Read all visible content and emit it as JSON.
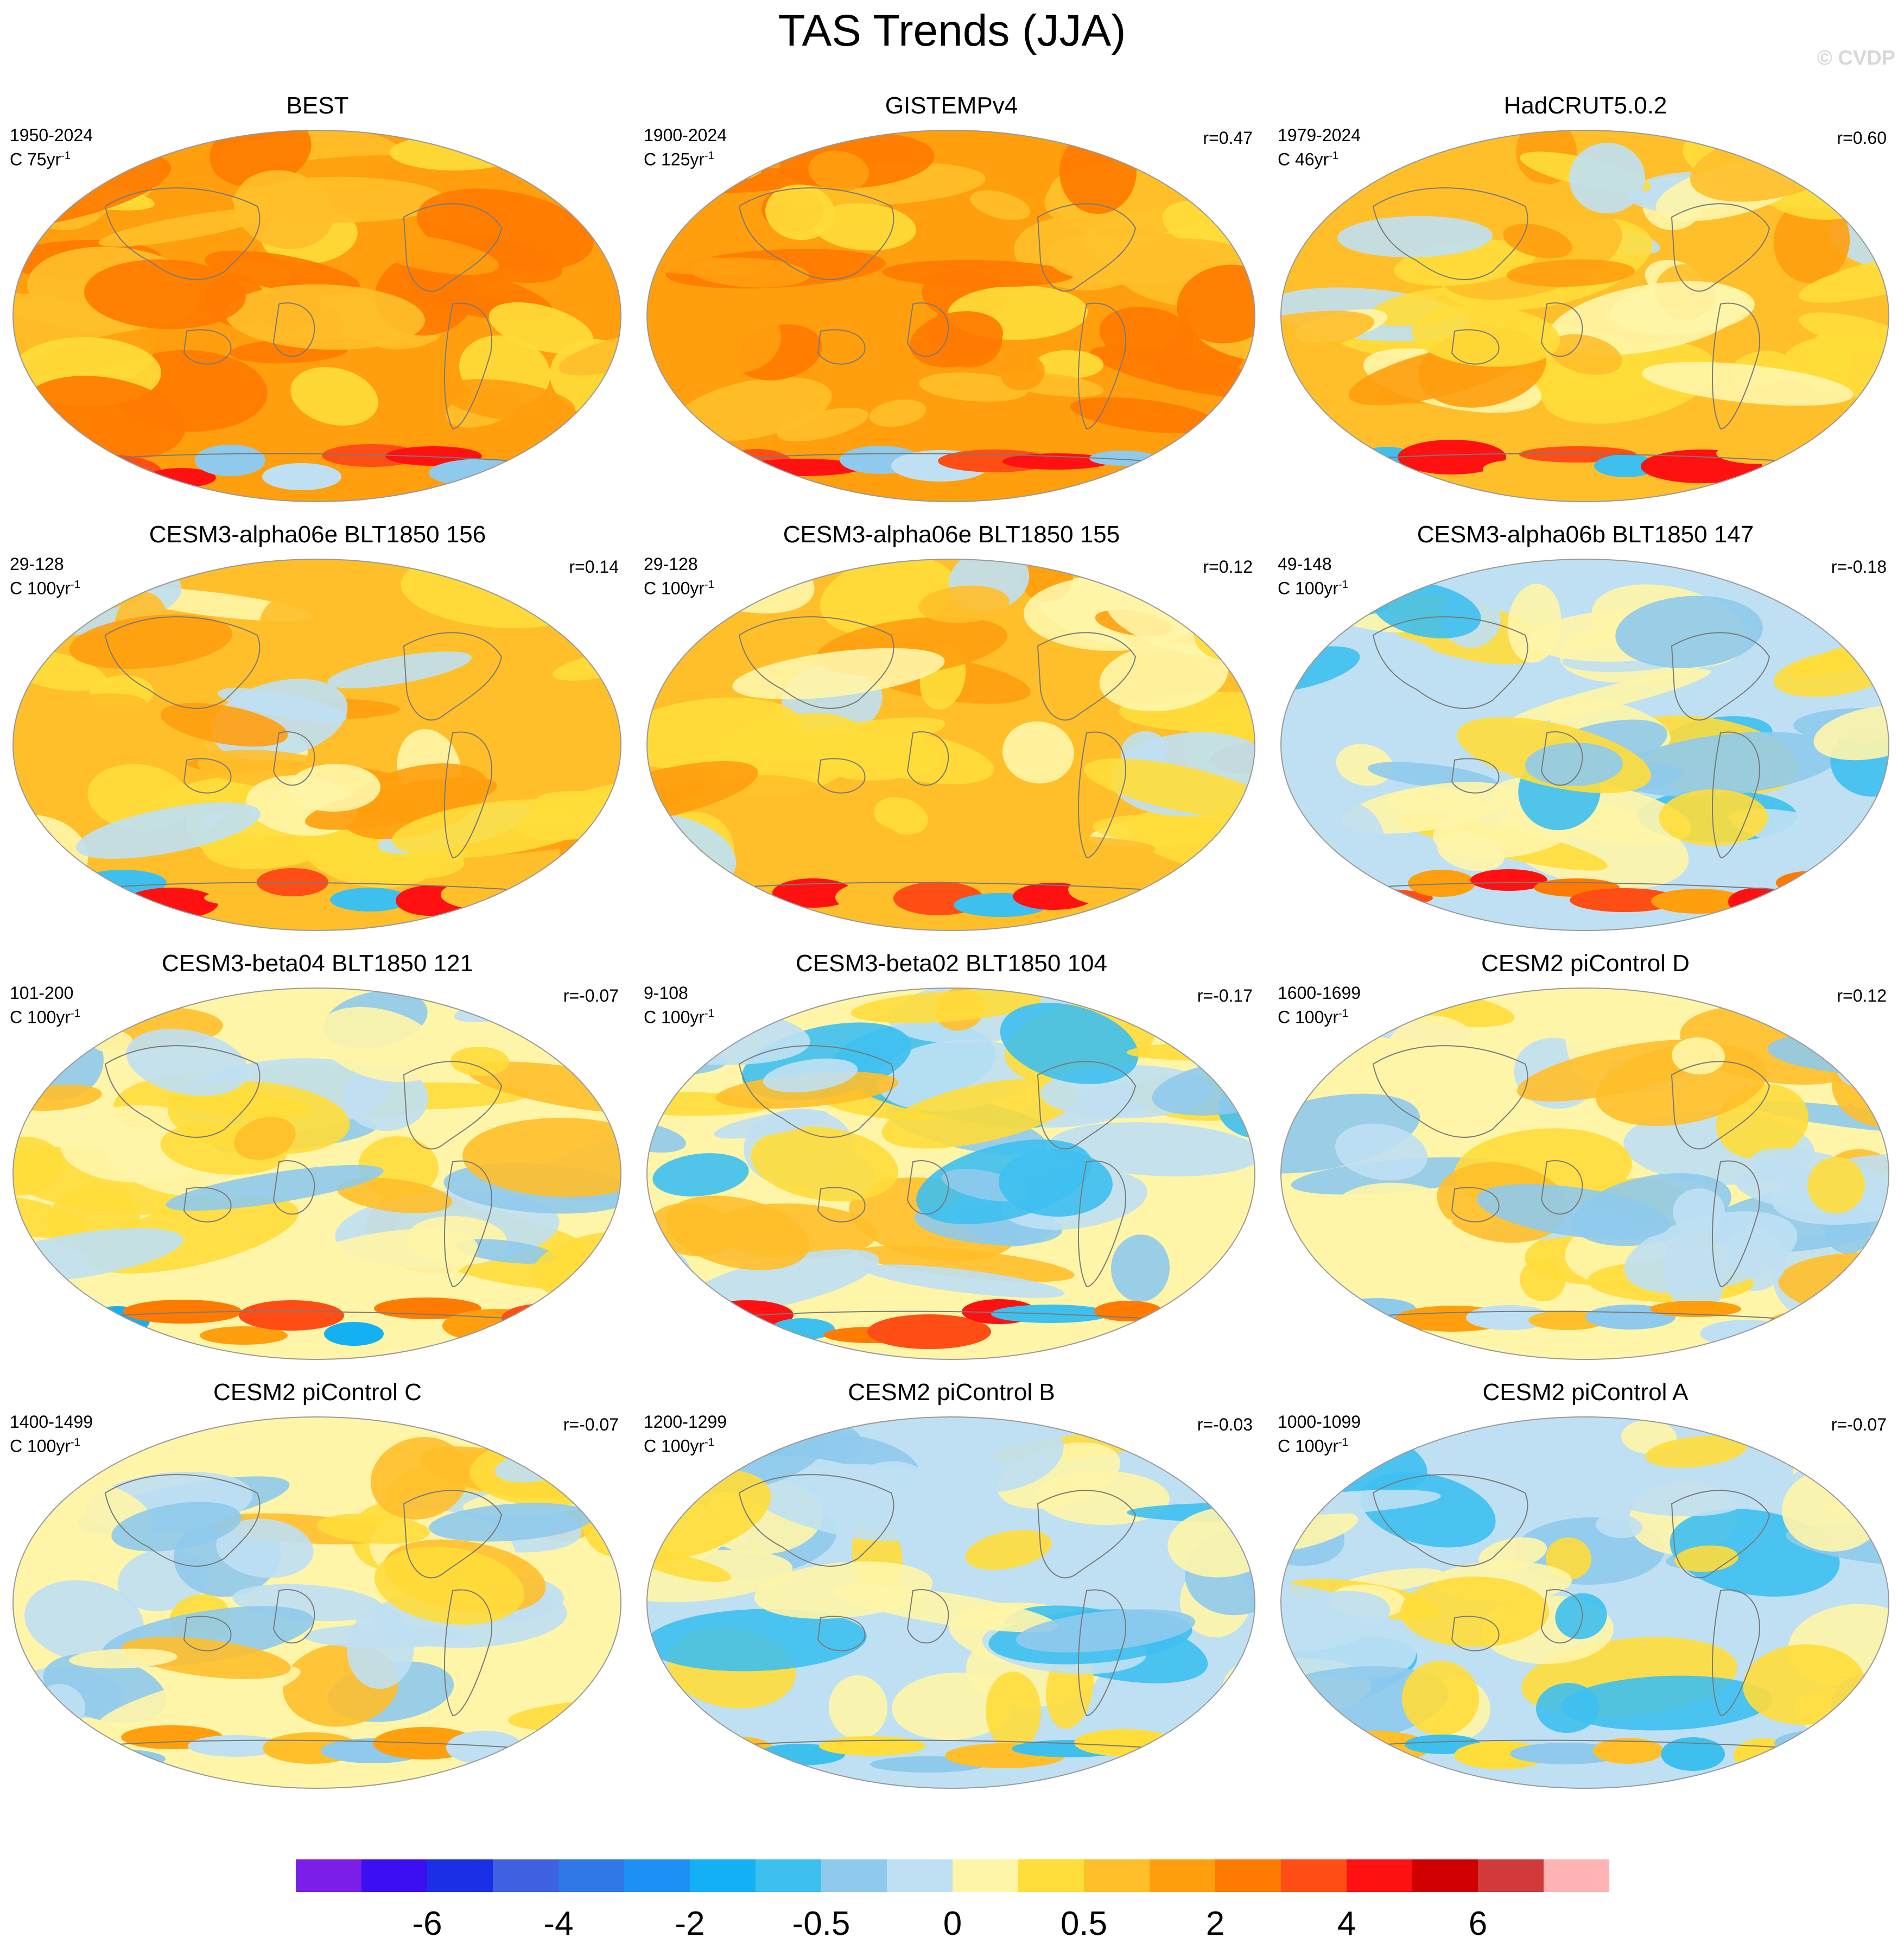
{
  "title": "TAS Trends (JJA)",
  "watermark": "© CVDP",
  "colorbar": {
    "colors": [
      "#7b1fe8",
      "#3b0ff2",
      "#1a2fe6",
      "#3d61e0",
      "#2f77e6",
      "#1d90f5",
      "#14b0f4",
      "#3ec0ef",
      "#8fcaec",
      "#bfe0f3",
      "#fff5a8",
      "#ffdd3a",
      "#ffbf2a",
      "#ff9f0e",
      "#ff7a00",
      "#ff4d16",
      "#ff1111",
      "#d10000",
      "#d03a3a",
      "#ffb3b3"
    ],
    "labels": [
      "-6",
      "-4",
      "-2",
      "-0.5",
      "0",
      "0.5",
      "2",
      "4",
      "6"
    ]
  },
  "chart_data": [
    {
      "type": "heatmap",
      "title": "BEST",
      "years": "1950-2024",
      "units": "C 75yr",
      "r": "",
      "pattern": "warm-strong"
    },
    {
      "type": "heatmap",
      "title": "GISTEMPv4",
      "years": "1900-2024",
      "units": "C 125yr",
      "r": "r=0.47",
      "pattern": "warm-strong"
    },
    {
      "type": "heatmap",
      "title": "HadCRUT5.0.2",
      "years": "1979-2024",
      "units": "C 46yr",
      "r": "r=0.60",
      "pattern": "warm-moderate"
    },
    {
      "type": "heatmap",
      "title": "CESM3-alpha06e BLT1850 156",
      "years": "29-128",
      "units": "C 100yr",
      "r": "r=0.14",
      "pattern": "warm-moderate"
    },
    {
      "type": "heatmap",
      "title": "CESM3-alpha06e BLT1850 155",
      "years": "29-128",
      "units": "C 100yr",
      "r": "r=0.12",
      "pattern": "warm-moderate"
    },
    {
      "type": "heatmap",
      "title": "CESM3-alpha06b BLT1850 147",
      "years": "49-148",
      "units": "C 100yr",
      "r": "r=-0.18",
      "pattern": "cool"
    },
    {
      "type": "heatmap",
      "title": "CESM3-beta04 BLT1850 121",
      "years": "101-200",
      "units": "C 100yr",
      "r": "r=-0.07",
      "pattern": "neutral-warm"
    },
    {
      "type": "heatmap",
      "title": "CESM3-beta02 BLT1850 104",
      "years": "9-108",
      "units": "C 100yr",
      "r": "r=-0.17",
      "pattern": "cool-north"
    },
    {
      "type": "heatmap",
      "title": "CESM2 piControl D",
      "years": "1600-1699",
      "units": "C 100yr",
      "r": "r=0.12",
      "pattern": "neutral"
    },
    {
      "type": "heatmap",
      "title": "CESM2 piControl C",
      "years": "1400-1499",
      "units": "C 100yr",
      "r": "r=-0.07",
      "pattern": "neutral"
    },
    {
      "type": "heatmap",
      "title": "CESM2 piControl B",
      "years": "1200-1299",
      "units": "C 100yr",
      "r": "r=-0.03",
      "pattern": "neutral-cool"
    },
    {
      "type": "heatmap",
      "title": "CESM2 piControl A",
      "years": "1000-1099",
      "units": "C 100yr",
      "r": "r=-0.07",
      "pattern": "neutral-cool"
    }
  ]
}
